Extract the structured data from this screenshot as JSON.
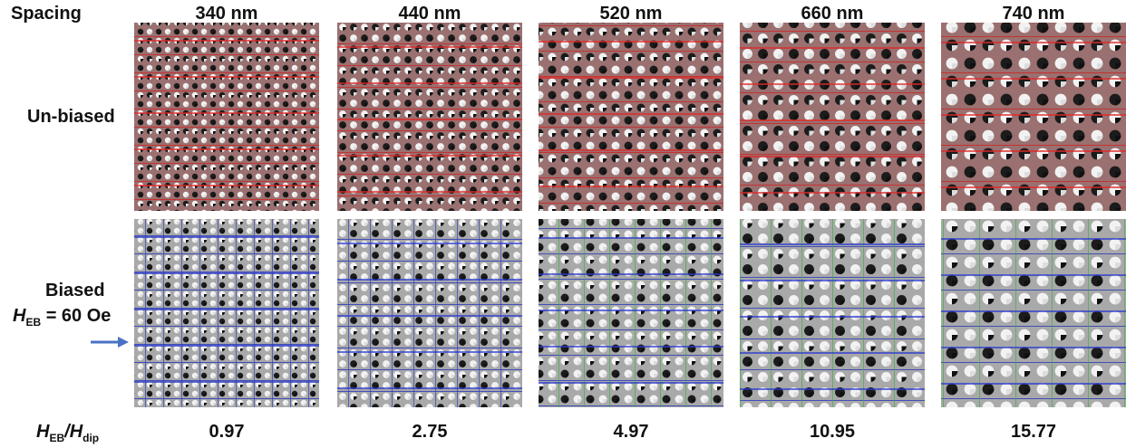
{
  "header": {
    "corner": "Spacing",
    "columns": [
      "340 nm",
      "440 nm",
      "520 nm",
      "660 nm",
      "740 nm"
    ]
  },
  "rows": [
    {
      "label": "Un-biased"
    },
    {
      "label": "Biased",
      "field": {
        "symbol": "H",
        "subscript": "EB",
        "text": "= 60 Oe"
      }
    }
  ],
  "ratio": {
    "numerator": {
      "symbol": "H",
      "subscript": "EB"
    },
    "separator": "/",
    "denominator": {
      "symbol": "H",
      "subscript": "dip"
    },
    "values": [
      0.97,
      2.75,
      4.97,
      10.95,
      15.77
    ]
  }
}
